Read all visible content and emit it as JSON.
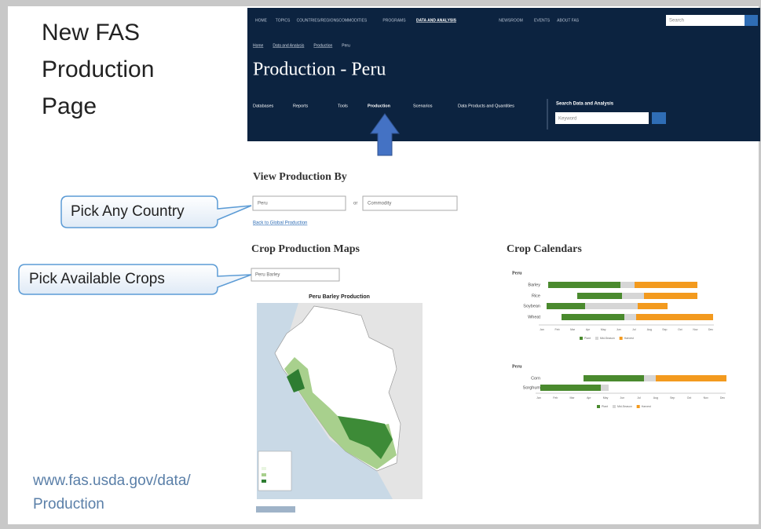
{
  "slide": {
    "title_lines": [
      "New FAS",
      "Production",
      "Page"
    ],
    "url_lines": [
      "www.fas.usda.gov/data/",
      "Production"
    ],
    "callouts": [
      "Pick Any Country",
      "Pick Available Crops"
    ]
  },
  "website": {
    "nav": [
      "HOME",
      "TOPICS",
      "COUNTRIES/REGIONS",
      "COMMODITIES",
      "PROGRAMS",
      "DATA AND ANALYSIS",
      "NEWSROOM",
      "EVENTS",
      "ABOUT FAS"
    ],
    "top_search": "Search",
    "breadcrumb": [
      "Home",
      "Data and Analysis",
      "Production",
      "Peru"
    ],
    "page_title": "Production - Peru",
    "subnav": [
      "Databases",
      "Reports",
      "Tools",
      "Production",
      "Scenarios",
      "Data Products and Quantities"
    ],
    "search_label": "Search Data and Analysis",
    "search_input": "Keyword",
    "view_heading": "View Production By",
    "country_select": "Peru",
    "or": "or",
    "commodity_select": "Commodity",
    "back_link": "Back to Global Production",
    "maps_heading": "Crop Production Maps",
    "crop_select": "Peru Barley",
    "map_title": "Peru Barley Production",
    "calendars_heading": "Crop Calendars",
    "calendars": [
      {
        "country": "Peru",
        "crops": [
          "Barley",
          "Rice",
          "Soybean",
          "Wheat"
        ]
      },
      {
        "country": "Peru",
        "crops": [
          "Corn",
          "Sorghum"
        ]
      }
    ],
    "months": [
      "Jan",
      "Feb",
      "Mar",
      "Apr",
      "May",
      "Jun",
      "Jul",
      "Aug",
      "Sep",
      "Oct",
      "Nov",
      "Dec"
    ],
    "legend": [
      "Plant",
      "Mid-Season",
      "Harvest"
    ]
  }
}
